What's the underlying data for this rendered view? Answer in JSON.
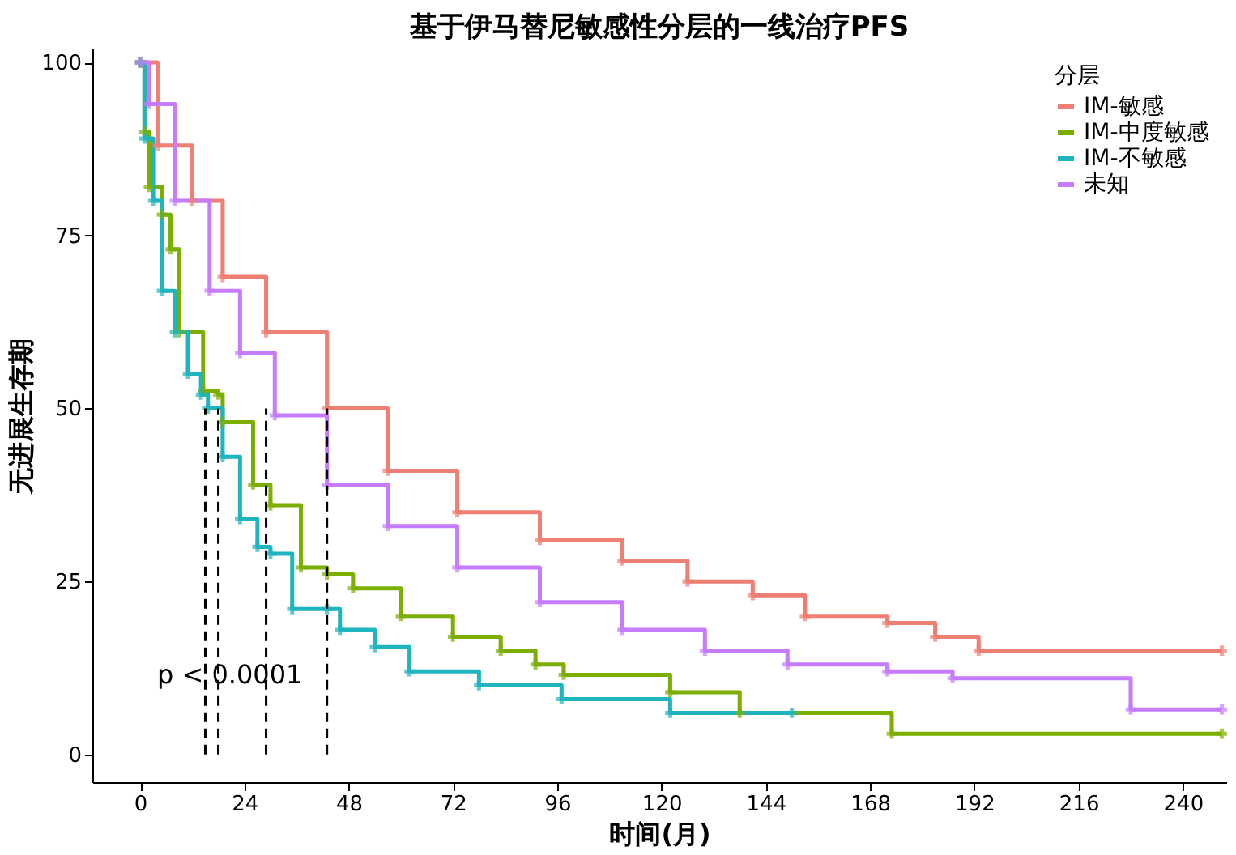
{
  "chart_data": {
    "type": "step",
    "title": "基于伊马替尼敏感性分层的一线治疗PFS",
    "xlabel": "时间(月)",
    "ylabel": "无进展生存期",
    "legend_title": "分层",
    "legend": "top right",
    "grid": false,
    "marker": "cross",
    "xlim": [
      -11,
      250
    ],
    "xticks": [
      0,
      24,
      48,
      72,
      96,
      120,
      144,
      168,
      192,
      216,
      240
    ],
    "ylim": [
      -4,
      102
    ],
    "yticks": [
      0,
      25,
      50,
      75,
      100
    ],
    "series": [
      {
        "name": "IM-敏感",
        "color": "#f07f73",
        "x": [
          0,
          4,
          12,
          19,
          29,
          43,
          57,
          73,
          92,
          111,
          126,
          141,
          153,
          172,
          183,
          193,
          249
        ],
        "values": [
          100,
          88,
          80,
          69,
          61,
          50,
          41,
          35,
          31,
          28,
          25,
          23,
          20,
          19,
          17,
          15,
          15
        ]
      },
      {
        "name": "IM-中度敏感",
        "color": "#7cae00",
        "x": [
          0,
          1,
          2,
          5,
          7,
          9,
          14.5,
          18,
          19,
          26,
          30,
          37,
          43,
          49,
          60,
          72,
          83,
          91,
          97.5,
          122,
          138,
          173,
          249
        ],
        "values": [
          100,
          90,
          82,
          78,
          73,
          61,
          52.5,
          52,
          48,
          39,
          36,
          27,
          26,
          24,
          20,
          17,
          15,
          13,
          11.5,
          9,
          6,
          3,
          3
        ]
      },
      {
        "name": "IM-不敏感",
        "color": "#1fb5bf",
        "x": [
          0,
          1,
          3,
          5,
          8,
          11,
          14,
          15.6,
          19,
          23,
          27,
          30,
          35,
          43,
          46,
          54,
          62,
          78,
          97,
          122,
          150
        ],
        "values": [
          100,
          89,
          80,
          67,
          61,
          55,
          52,
          50,
          43,
          34,
          30,
          29,
          21,
          21,
          18,
          15.5,
          12,
          10,
          8,
          6,
          6
        ]
      },
      {
        "name": "未知",
        "color": "#c77cff",
        "x": [
          0,
          2,
          8,
          16,
          23,
          31,
          43,
          57,
          73,
          92,
          111,
          130,
          149,
          172,
          187,
          228,
          249
        ],
        "values": [
          100,
          94,
          80,
          67,
          58,
          49,
          39,
          33,
          27,
          22,
          18,
          15,
          13,
          12,
          11,
          6.5,
          6.5
        ]
      }
    ],
    "ref_lines": [
      {
        "axis": "x",
        "value": 15,
        "line_style": "dashed",
        "color": "#000000"
      },
      {
        "axis": "x",
        "value": 18,
        "line_style": "dashed",
        "color": "#000000"
      },
      {
        "axis": "x",
        "value": 29,
        "line_style": "dashed",
        "color": "#000000"
      },
      {
        "axis": "x",
        "value": 43,
        "line_style": "dashed",
        "color": "#000000"
      }
    ],
    "annotations": [
      "p < 0.0001"
    ]
  }
}
